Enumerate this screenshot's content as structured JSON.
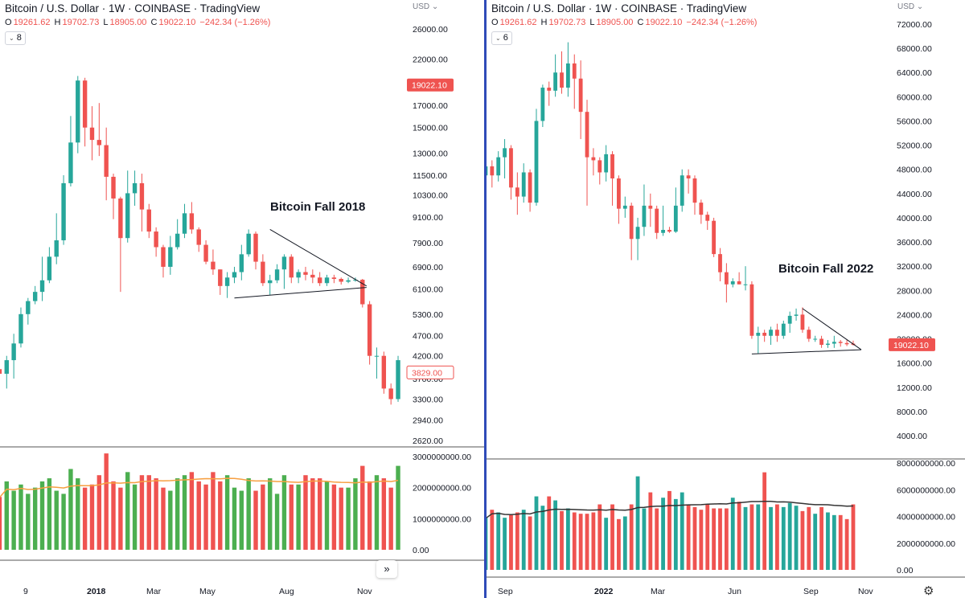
{
  "left": {
    "title": "Bitcoin / U.S. Dollar · 1W · COINBASE · TradingView",
    "ohlc": {
      "o_key": "O",
      "o": "19261.62",
      "h_key": "H",
      "h": "19702.73",
      "l_key": "L",
      "l": "18905.00",
      "c_key": "C",
      "c": "19022.10",
      "change": "−242.34 (−1.26%)"
    },
    "indicator_count": "8",
    "currency": "USD",
    "annotation": "Bitcoin Fall 2018",
    "scroll_icon": "»"
  },
  "right": {
    "title": "Bitcoin / U.S. Dollar · 1W · COINBASE · TradingView",
    "ohlc": {
      "o_key": "O",
      "o": "19261.62",
      "h_key": "H",
      "h": "19702.73",
      "l_key": "L",
      "l": "18905.00",
      "c_key": "C",
      "c": "19022.10",
      "change": "−242.34 (−1.26%)"
    },
    "indicator_count": "6",
    "currency": "USD",
    "annotation": "Bitcoin Fall 2022",
    "settings_icon": "gear-icon"
  },
  "colors": {
    "up": "#26a69a",
    "down": "#ef5350",
    "up_volume_left": "#4caf50",
    "ma_left": "#f7a042",
    "ma_right": "#333333",
    "divider": "#2f4bb8"
  },
  "chart_data": [
    {
      "type": "candlestick",
      "title": "Bitcoin / U.S. Dollar · 1W · COINBASE · TradingView",
      "scale": "log",
      "y_ticks": [
        26000,
        22000,
        17000,
        15000,
        13000,
        11500,
        10300,
        9100,
        7900,
        6900,
        6100,
        5300,
        4700,
        4200,
        3700,
        3300,
        2940,
        2620
      ],
      "y_tick_labels": [
        "26000.00",
        "22000.00",
        "17000.00",
        "15000.00",
        "13000.00",
        "11500.00",
        "10300.00",
        "9100.00",
        "7900.00",
        "6900.00",
        "6100.00",
        "5300.00",
        "4700.00",
        "4200.00",
        "3700.00",
        "3300.00",
        "2940.00",
        "2620.00"
      ],
      "price_tags": [
        {
          "label": "19022.10",
          "value": 19022.1,
          "style": "filled"
        },
        {
          "label": "3829.00",
          "value": 3829,
          "style": "outline"
        }
      ],
      "x_labels": [
        "9",
        "2018",
        "Mar",
        "May",
        "Aug",
        "Nov"
      ],
      "ohlc_weekly": [
        [
          3900,
          4150,
          2900,
          3800
        ],
        [
          3800,
          4200,
          3500,
          4100
        ],
        [
          4100,
          4750,
          3700,
          4500
        ],
        [
          4500,
          5500,
          4400,
          5300
        ],
        [
          5300,
          5800,
          5000,
          5700
        ],
        [
          5700,
          6200,
          5600,
          6000
        ],
        [
          6000,
          7300,
          5700,
          6400
        ],
        [
          6400,
          7700,
          6300,
          7300
        ],
        [
          7300,
          9300,
          7000,
          8000
        ],
        [
          8000,
          11500,
          7800,
          11000
        ],
        [
          11000,
          16000,
          10800,
          13800
        ],
        [
          13800,
          20000,
          13000,
          19500
        ],
        [
          19500,
          19800,
          13500,
          15000
        ],
        [
          15000,
          16900,
          12500,
          14000
        ],
        [
          14000,
          17200,
          12800,
          13600
        ],
        [
          13600,
          15000,
          10000,
          11400
        ],
        [
          11400,
          11600,
          9000,
          10100
        ],
        [
          10100,
          10200,
          6000,
          8100
        ],
        [
          8100,
          11800,
          7900,
          10400
        ],
        [
          10400,
          11800,
          9700,
          11000
        ],
        [
          11000,
          11600,
          8400,
          9500
        ],
        [
          9500,
          9800,
          8100,
          8400
        ],
        [
          8400,
          8600,
          7300,
          7700
        ],
        [
          7700,
          7800,
          6500,
          6900
        ],
        [
          6900,
          8200,
          6600,
          7700
        ],
        [
          7700,
          9000,
          7600,
          8300
        ],
        [
          8300,
          9800,
          8100,
          9300
        ],
        [
          9300,
          9900,
          8300,
          8500
        ],
        [
          8500,
          8600,
          7500,
          7800
        ],
        [
          7800,
          8000,
          7000,
          7100
        ],
        [
          7100,
          7600,
          6600,
          6800
        ],
        [
          6800,
          6800,
          5900,
          6200
        ],
        [
          6200,
          6700,
          5800,
          6500
        ],
        [
          6500,
          6900,
          6300,
          6700
        ],
        [
          6700,
          7800,
          6400,
          7400
        ],
        [
          7400,
          8500,
          7300,
          8300
        ],
        [
          8300,
          8400,
          6800,
          7100
        ],
        [
          7100,
          7400,
          6200,
          6300
        ],
        [
          6300,
          6600,
          5900,
          6400
        ],
        [
          6400,
          7000,
          6300,
          6800
        ],
        [
          6800,
          7400,
          6100,
          7300
        ],
        [
          7300,
          7400,
          6300,
          6500
        ],
        [
          6500,
          6800,
          6300,
          6700
        ],
        [
          6700,
          6900,
          6400,
          6600
        ],
        [
          6600,
          6800,
          6300,
          6500
        ],
        [
          6500,
          6700,
          6200,
          6300
        ],
        [
          6300,
          6600,
          6200,
          6500
        ],
        [
          6500,
          6600,
          6300,
          6450
        ],
        [
          6450,
          6500,
          6250,
          6350
        ],
        [
          6350,
          6500,
          6300,
          6400
        ],
        [
          6400,
          6500,
          6350,
          6420
        ],
        [
          6420,
          6450,
          5500,
          5600
        ],
        [
          5600,
          5700,
          4000,
          4200
        ],
        [
          4200,
          4400,
          3700,
          4200
        ],
        [
          4200,
          4300,
          3400,
          3500
        ],
        [
          3500,
          3600,
          3200,
          3300
        ],
        [
          3300,
          4200,
          3250,
          4100
        ]
      ],
      "volume_axis": {
        "ticks": [
          3000000000,
          2000000000,
          1000000000,
          0
        ],
        "tick_labels": [
          "3000000000.00",
          "2000000000.00",
          "1000000000.00",
          "0.00"
        ]
      },
      "volume": [
        1700000000,
        2200000000,
        1900000000,
        2100000000,
        1800000000,
        2000000000,
        2200000000,
        2300000000,
        1900000000,
        1800000000,
        2600000000,
        2300000000,
        2000000000,
        2100000000,
        2400000000,
        3100000000,
        2200000000,
        2000000000,
        2500000000,
        2100000000,
        2400000000,
        2400000000,
        2300000000,
        2000000000,
        1900000000,
        2300000000,
        2400000000,
        2500000000,
        2200000000,
        2100000000,
        2500000000,
        2200000000,
        2400000000,
        2000000000,
        1900000000,
        2300000000,
        1900000000,
        2100000000,
        2300000000,
        1800000000,
        2400000000,
        2100000000,
        2100000000,
        2400000000,
        2300000000,
        2300000000,
        2200000000,
        2100000000,
        2000000000,
        2000000000,
        2300000000,
        2700000000,
        2200000000,
        2400000000,
        2300000000,
        2000000000,
        2700000000
      ],
      "annotation": "Bitcoin Fall 2018",
      "triangle": {
        "upper": [
          [
            38,
            8500
          ],
          [
            51,
            6200
          ]
        ],
        "lower": [
          [
            33,
            5800
          ],
          [
            51,
            6150
          ]
        ]
      }
    },
    {
      "type": "candlestick",
      "title": "Bitcoin / U.S. Dollar · 1W · COINBASE · TradingView",
      "scale": "linear",
      "y_ticks": [
        72000,
        68000,
        64000,
        60000,
        56000,
        52000,
        48000,
        44000,
        40000,
        36000,
        32000,
        28000,
        24000,
        20000,
        16000,
        12000,
        8000,
        4000
      ],
      "y_tick_labels": [
        "72000.00",
        "68000.00",
        "64000.00",
        "60000.00",
        "56000.00",
        "52000.00",
        "48000.00",
        "44000.00",
        "40000.00",
        "36000.00",
        "32000.00",
        "28000.00",
        "24000.00",
        "20000.00",
        "16000.00",
        "12000.00",
        "8000.00",
        "4000.00"
      ],
      "price_tags": [
        {
          "label": "19022.10",
          "value": 19022.1,
          "style": "filled"
        }
      ],
      "x_labels": [
        "Sep",
        "2022",
        "Mar",
        "Jun",
        "Sep",
        "Nov"
      ],
      "ohlc_weekly": [
        [
          47000,
          50000,
          44500,
          48500
        ],
        [
          48500,
          49500,
          45000,
          47000
        ],
        [
          47000,
          51000,
          46000,
          50000
        ],
        [
          50000,
          53000,
          46500,
          51500
        ],
        [
          51500,
          52000,
          43000,
          45000
        ],
        [
          45000,
          47500,
          40500,
          43500
        ],
        [
          43500,
          49000,
          42500,
          47500
        ],
        [
          47500,
          48000,
          41000,
          42500
        ],
        [
          42500,
          58000,
          42000,
          56000
        ],
        [
          56000,
          62000,
          55000,
          61500
        ],
        [
          61500,
          62500,
          58500,
          61000
        ],
        [
          61000,
          67000,
          60000,
          64000
        ],
        [
          64000,
          67500,
          60500,
          61500
        ],
        [
          61500,
          69000,
          60000,
          65500
        ],
        [
          65500,
          67000,
          58000,
          63000
        ],
        [
          63000,
          66000,
          53000,
          57500
        ],
        [
          57500,
          59500,
          42000,
          50000
        ],
        [
          50000,
          51500,
          47000,
          49500
        ],
        [
          49500,
          50000,
          45500,
          47500
        ],
        [
          47500,
          52000,
          46000,
          50500
        ],
        [
          50500,
          51000,
          42000,
          46500
        ],
        [
          46500,
          47000,
          39000,
          41500
        ],
        [
          41500,
          43500,
          40000,
          42000
        ],
        [
          42000,
          42500,
          33000,
          36500
        ],
        [
          36500,
          40000,
          33000,
          38500
        ],
        [
          38500,
          45500,
          37000,
          42000
        ],
        [
          42000,
          44000,
          38500,
          41500
        ],
        [
          41500,
          42000,
          36500,
          37500
        ],
        [
          37500,
          42000,
          37000,
          38000
        ],
        [
          38000,
          38500,
          37500,
          37700
        ],
        [
          37700,
          45000,
          37500,
          42000
        ],
        [
          42000,
          48000,
          41000,
          47000
        ],
        [
          47000,
          48000,
          44000,
          46500
        ],
        [
          46500,
          47000,
          40500,
          42500
        ],
        [
          42500,
          43000,
          39000,
          40500
        ],
        [
          40500,
          41000,
          38000,
          39500
        ],
        [
          39500,
          40000,
          33500,
          34000
        ],
        [
          34000,
          35000,
          29500,
          31000
        ],
        [
          31000,
          32500,
          26000,
          29000
        ],
        [
          29000,
          30000,
          28500,
          29500
        ],
        [
          29500,
          31000,
          29000,
          29000
        ],
        [
          29000,
          32000,
          28000,
          29000
        ],
        [
          29000,
          29500,
          20000,
          20500
        ],
        [
          20500,
          22000,
          17600,
          21000
        ],
        [
          21000,
          21500,
          19500,
          20500
        ],
        [
          20500,
          22000,
          19000,
          21500
        ],
        [
          21500,
          22500,
          19500,
          20500
        ],
        [
          20500,
          23000,
          20000,
          22500
        ],
        [
          22500,
          24500,
          21000,
          23800
        ],
        [
          23800,
          25000,
          23000,
          24000
        ],
        [
          24000,
          25200,
          21000,
          21500
        ],
        [
          21500,
          22000,
          19500,
          20000
        ],
        [
          20000,
          20500,
          19500,
          20000
        ],
        [
          20000,
          20500,
          18500,
          19000
        ],
        [
          19000,
          19800,
          18500,
          19200
        ],
        [
          19200,
          20500,
          18500,
          19500
        ],
        [
          19500,
          19800,
          18700,
          19300
        ],
        [
          19300,
          19800,
          18800,
          19100
        ],
        [
          19200,
          19700,
          18900,
          19022
        ]
      ],
      "volume_axis": {
        "ticks": [
          8000000000,
          6000000000,
          4000000000,
          2000000000,
          0
        ],
        "tick_labels": [
          "8000000000.00",
          "6000000000.00",
          "4000000000.00",
          "2000000000.00",
          "0.00"
        ]
      },
      "volume": [
        3900000000,
        4500000000,
        4300000000,
        3900000000,
        4100000000,
        4300000000,
        4500000000,
        4000000000,
        5500000000,
        4800000000,
        5500000000,
        5200000000,
        4400000000,
        4600000000,
        4300000000,
        4200000000,
        4200000000,
        4300000000,
        4900000000,
        3900000000,
        4900000000,
        3800000000,
        4000000000,
        4900000000,
        7000000000,
        4600000000,
        5800000000,
        4600000000,
        5400000000,
        5900000000,
        5300000000,
        5800000000,
        4900000000,
        4700000000,
        4500000000,
        4900000000,
        4600000000,
        4600000000,
        4600000000,
        5400000000,
        5100000000,
        4700000000,
        4900000000,
        4900000000,
        7300000000,
        4700000000,
        4900000000,
        4700000000,
        5000000000,
        4800000000,
        4400000000,
        4700000000,
        4200000000,
        4700000000,
        4300000000,
        4100000000,
        4100000000,
        3800000000,
        4900000000
      ],
      "annotation": "Bitcoin Fall 2022",
      "triangle": {
        "upper": [
          [
            50,
            25000
          ],
          [
            58,
            18200
          ]
        ],
        "lower": [
          [
            42,
            17500
          ],
          [
            58,
            18200
          ]
        ]
      }
    }
  ]
}
